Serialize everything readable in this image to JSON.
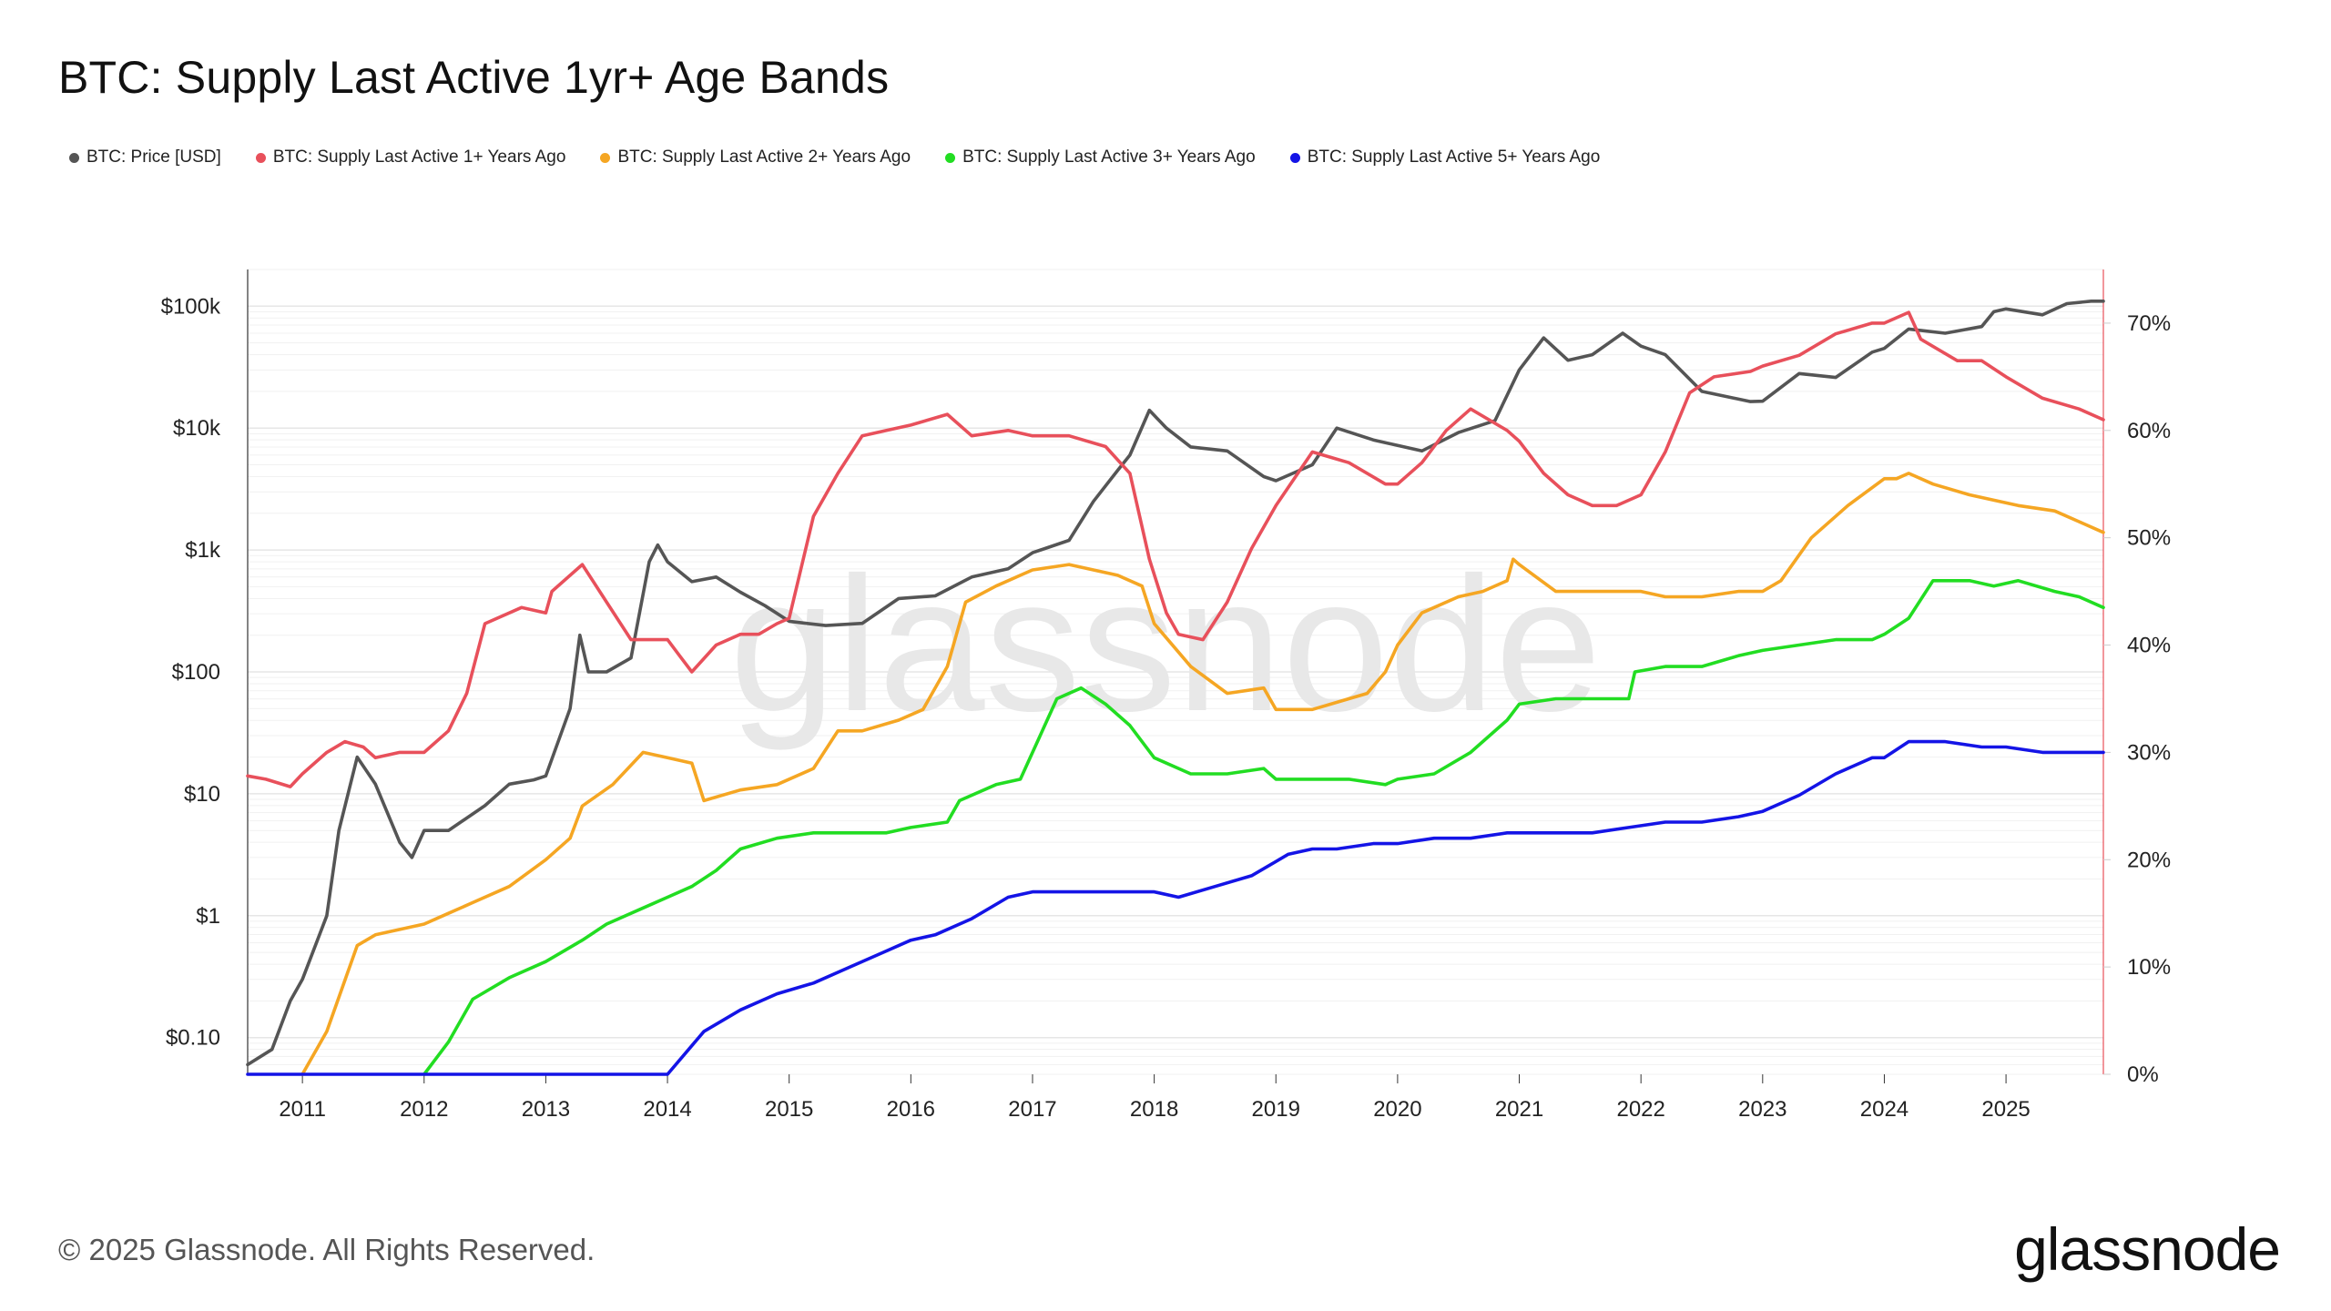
{
  "title": "BTC: Supply Last Active 1yr+ Age Bands",
  "footer": "© 2025 Glassnode. All Rights Reserved.",
  "logo": "glassnode",
  "watermark": "glassnode",
  "legend": [
    {
      "label": "BTC: Price [USD]",
      "color": "#555555"
    },
    {
      "label": "BTC: Supply Last Active 1+ Years Ago",
      "color": "#e8505b"
    },
    {
      "label": "BTC: Supply Last Active 2+ Years Ago",
      "color": "#f5a623"
    },
    {
      "label": "BTC: Supply Last Active 3+ Years Ago",
      "color": "#22dd22"
    },
    {
      "label": "BTC: Supply Last Active 5+ Years Ago",
      "color": "#1414e6"
    }
  ],
  "chart_data": {
    "type": "line",
    "x_range": [
      2010.55,
      2025.8
    ],
    "x_ticks": [
      "2011",
      "2012",
      "2013",
      "2014",
      "2015",
      "2016",
      "2017",
      "2018",
      "2019",
      "2020",
      "2021",
      "2022",
      "2023",
      "2024",
      "2025"
    ],
    "y_left": {
      "scale": "log",
      "range": [
        0.05,
        200000
      ],
      "ticks": [
        {
          "v": 0.1,
          "label": "$0.10"
        },
        {
          "v": 1,
          "label": "$1"
        },
        {
          "v": 10,
          "label": "$10"
        },
        {
          "v": 100,
          "label": "$100"
        },
        {
          "v": 1000,
          "label": "$1k"
        },
        {
          "v": 10000,
          "label": "$10k"
        },
        {
          "v": 100000,
          "label": "$100k"
        }
      ]
    },
    "y_right": {
      "scale": "linear",
      "range": [
        0,
        75
      ],
      "ticks": [
        {
          "v": 0,
          "label": "0%"
        },
        {
          "v": 10,
          "label": "10%"
        },
        {
          "v": 20,
          "label": "20%"
        },
        {
          "v": 30,
          "label": "30%"
        },
        {
          "v": 40,
          "label": "40%"
        },
        {
          "v": 50,
          "label": "50%"
        },
        {
          "v": 60,
          "label": "60%"
        },
        {
          "v": 70,
          "label": "70%"
        }
      ]
    },
    "grid": true,
    "series": [
      {
        "name": "BTC: Price [USD]",
        "color": "#555555",
        "axis": "left",
        "x": [
          2010.55,
          2010.75,
          2010.9,
          2011.0,
          2011.2,
          2011.3,
          2011.45,
          2011.6,
          2011.8,
          2011.9,
          2012.0,
          2012.2,
          2012.5,
          2012.7,
          2012.9,
          2013.0,
          2013.2,
          2013.28,
          2013.35,
          2013.5,
          2013.7,
          2013.85,
          2013.92,
          2014.0,
          2014.2,
          2014.4,
          2014.6,
          2014.8,
          2015.0,
          2015.3,
          2015.6,
          2015.9,
          2016.2,
          2016.5,
          2016.8,
          2017.0,
          2017.3,
          2017.5,
          2017.7,
          2017.8,
          2017.96,
          2018.1,
          2018.3,
          2018.6,
          2018.9,
          2019.0,
          2019.3,
          2019.5,
          2019.8,
          2020.0,
          2020.2,
          2020.5,
          2020.8,
          2021.0,
          2021.2,
          2021.4,
          2021.6,
          2021.85,
          2022.0,
          2022.2,
          2022.5,
          2022.9,
          2023.0,
          2023.3,
          2023.6,
          2023.9,
          2024.0,
          2024.2,
          2024.5,
          2024.8,
          2024.9,
          2025.0,
          2025.3,
          2025.5,
          2025.7,
          2025.8
        ],
        "y": [
          0.06,
          0.08,
          0.2,
          0.3,
          1.0,
          5,
          20,
          12,
          4,
          3,
          5,
          5,
          8,
          12,
          13,
          14,
          50,
          200,
          100,
          100,
          130,
          800,
          1100,
          800,
          550,
          600,
          450,
          350,
          260,
          240,
          250,
          400,
          420,
          600,
          700,
          950,
          1200,
          2500,
          4500,
          6000,
          14000,
          10000,
          7000,
          6500,
          4000,
          3700,
          5000,
          10000,
          8000,
          7200,
          6500,
          9200,
          11500,
          30000,
          55000,
          36000,
          40000,
          60000,
          47000,
          40000,
          20000,
          16500,
          16600,
          28000,
          26000,
          42000,
          45000,
          65000,
          60000,
          68000,
          90000,
          95000,
          85000,
          105000,
          110000,
          110000
        ]
      },
      {
        "name": "BTC: Supply Last Active 1+ Years Ago",
        "color": "#e8505b",
        "axis": "right",
        "x": [
          2010.55,
          2010.7,
          2010.9,
          2011.0,
          2011.2,
          2011.35,
          2011.5,
          2011.6,
          2011.8,
          2012.0,
          2012.2,
          2012.35,
          2012.5,
          2012.8,
          2013.0,
          2013.05,
          2013.3,
          2013.5,
          2013.7,
          2013.8,
          2014.0,
          2014.1,
          2014.2,
          2014.4,
          2014.6,
          2014.75,
          2014.9,
          2015.0,
          2015.2,
          2015.4,
          2015.6,
          2015.8,
          2016.0,
          2016.3,
          2016.5,
          2016.8,
          2017.0,
          2017.3,
          2017.6,
          2017.8,
          2017.96,
          2018.1,
          2018.2,
          2018.4,
          2018.6,
          2018.8,
          2019.0,
          2019.3,
          2019.6,
          2019.9,
          2020.0,
          2020.2,
          2020.4,
          2020.6,
          2020.9,
          2021.0,
          2021.2,
          2021.4,
          2021.6,
          2021.8,
          2022.0,
          2022.2,
          2022.4,
          2022.6,
          2022.9,
          2023.0,
          2023.3,
          2023.6,
          2023.9,
          2024.0,
          2024.2,
          2024.3,
          2024.6,
          2024.8,
          2025.0,
          2025.3,
          2025.6,
          2025.8
        ],
        "y": [
          27.8,
          27.5,
          26.8,
          28,
          30,
          31,
          30.5,
          29.5,
          30,
          30,
          32,
          35.5,
          42,
          43.5,
          43,
          45,
          47.5,
          44,
          40.5,
          40.5,
          40.5,
          39,
          37.5,
          40,
          41,
          41,
          42,
          42.5,
          52,
          56,
          59.5,
          60,
          60.5,
          61.5,
          59.5,
          60,
          59.5,
          59.5,
          58.5,
          56,
          48,
          43,
          41,
          40.5,
          44,
          49,
          53,
          58,
          57,
          55,
          55,
          57,
          60,
          62,
          60,
          59,
          56,
          54,
          53,
          53,
          54,
          58,
          63.5,
          65,
          65.5,
          66,
          67,
          69,
          70,
          70,
          71,
          68.5,
          66.5,
          66.5,
          65,
          63,
          62,
          61
        ]
      },
      {
        "name": "BTC: Supply Last Active 2+ Years Ago",
        "color": "#f5a623",
        "axis": "right",
        "x": [
          2011.0,
          2011.2,
          2011.45,
          2011.6,
          2012.0,
          2012.2,
          2012.4,
          2012.7,
          2013.0,
          2013.2,
          2013.3,
          2013.55,
          2013.8,
          2014.0,
          2014.2,
          2014.3,
          2014.6,
          2014.9,
          2015.2,
          2015.4,
          2015.6,
          2015.9,
          2016.1,
          2016.3,
          2016.45,
          2016.7,
          2016.9,
          2017.0,
          2017.3,
          2017.5,
          2017.7,
          2017.9,
          2018.0,
          2018.3,
          2018.6,
          2018.9,
          2019.0,
          2019.3,
          2019.6,
          2019.75,
          2019.9,
          2020.0,
          2020.2,
          2020.5,
          2020.7,
          2020.9,
          2020.95,
          2021.0,
          2021.3,
          2021.6,
          2021.9,
          2022.0,
          2022.2,
          2022.5,
          2022.8,
          2023.0,
          2023.15,
          2023.4,
          2023.7,
          2024.0,
          2024.1,
          2024.2,
          2024.4,
          2024.7,
          2024.9,
          2025.1,
          2025.4,
          2025.6,
          2025.8
        ],
        "y": [
          0,
          4,
          12,
          13,
          14,
          15,
          16,
          17.5,
          20,
          22,
          25,
          27,
          30,
          29.5,
          29,
          25.5,
          26.5,
          27,
          28.5,
          32,
          32,
          33,
          34,
          38,
          44,
          45.5,
          46.5,
          47,
          47.5,
          47,
          46.5,
          45.5,
          42,
          38,
          35.5,
          36,
          34,
          34,
          35,
          35.5,
          37.5,
          40,
          43,
          44.5,
          45,
          46,
          48,
          47.5,
          45,
          45,
          45,
          45,
          44.5,
          44.5,
          45,
          45,
          46,
          50,
          53,
          55.5,
          55.5,
          56,
          55,
          54,
          53.5,
          53,
          52.5,
          51.5,
          50.5
        ]
      },
      {
        "name": "BTC: Supply Last Active 3+ Years Ago",
        "color": "#22dd22",
        "axis": "right",
        "x": [
          2012.0,
          2012.2,
          2012.4,
          2012.7,
          2013.0,
          2013.3,
          2013.5,
          2013.8,
          2014.0,
          2014.2,
          2014.4,
          2014.6,
          2014.9,
          2015.2,
          2015.5,
          2015.8,
          2016.0,
          2016.3,
          2016.4,
          2016.7,
          2016.9,
          2017.0,
          2017.2,
          2017.4,
          2017.6,
          2017.8,
          2018.0,
          2018.3,
          2018.6,
          2018.9,
          2019.0,
          2019.3,
          2019.6,
          2019.9,
          2020.0,
          2020.3,
          2020.6,
          2020.9,
          2021.0,
          2021.3,
          2021.6,
          2021.9,
          2021.95,
          2022.2,
          2022.5,
          2022.8,
          2023.0,
          2023.3,
          2023.6,
          2023.9,
          2024.0,
          2024.2,
          2024.4,
          2024.7,
          2024.9,
          2025.1,
          2025.4,
          2025.6,
          2025.8
        ],
        "y": [
          0,
          3,
          7,
          9,
          10.5,
          12.5,
          14,
          15.5,
          16.5,
          17.5,
          19,
          21,
          22,
          22.5,
          22.5,
          22.5,
          23,
          23.5,
          25.5,
          27,
          27.5,
          30,
          35,
          36,
          34.5,
          32.5,
          29.5,
          28,
          28,
          28.5,
          27.5,
          27.5,
          27.5,
          27,
          27.5,
          28,
          30,
          33,
          34.5,
          35,
          35,
          35,
          37.5,
          38,
          38,
          39,
          39.5,
          40,
          40.5,
          40.5,
          41,
          42.5,
          46,
          46,
          45.5,
          46,
          45,
          44.5,
          43.5
        ]
      },
      {
        "name": "BTC: Supply Last Active 5+ Years Ago",
        "color": "#1414e6",
        "axis": "right",
        "x": [
          2010.55,
          2014.0,
          2014.3,
          2014.6,
          2014.9,
          2015.2,
          2015.5,
          2015.8,
          2016.0,
          2016.2,
          2016.5,
          2016.8,
          2017.0,
          2017.3,
          2017.6,
          2017.9,
          2018.0,
          2018.2,
          2018.5,
          2018.8,
          2018.95,
          2019.1,
          2019.3,
          2019.5,
          2019.8,
          2020.0,
          2020.3,
          2020.6,
          2020.9,
          2021.0,
          2021.3,
          2021.6,
          2021.9,
          2022.2,
          2022.5,
          2022.8,
          2023.0,
          2023.3,
          2023.6,
          2023.9,
          2024.0,
          2024.2,
          2024.5,
          2024.8,
          2025.0,
          2025.3,
          2025.6,
          2025.8
        ],
        "y": [
          0,
          0,
          4,
          6,
          7.5,
          8.5,
          10,
          11.5,
          12.5,
          13,
          14.5,
          16.5,
          17,
          17,
          17,
          17,
          17,
          16.5,
          17.5,
          18.5,
          19.5,
          20.5,
          21,
          21,
          21.5,
          21.5,
          22,
          22,
          22.5,
          22.5,
          22.5,
          22.5,
          23,
          23.5,
          23.5,
          24,
          24.5,
          26,
          28,
          29.5,
          29.5,
          31,
          31,
          30.5,
          30.5,
          30,
          30,
          30
        ]
      }
    ]
  }
}
